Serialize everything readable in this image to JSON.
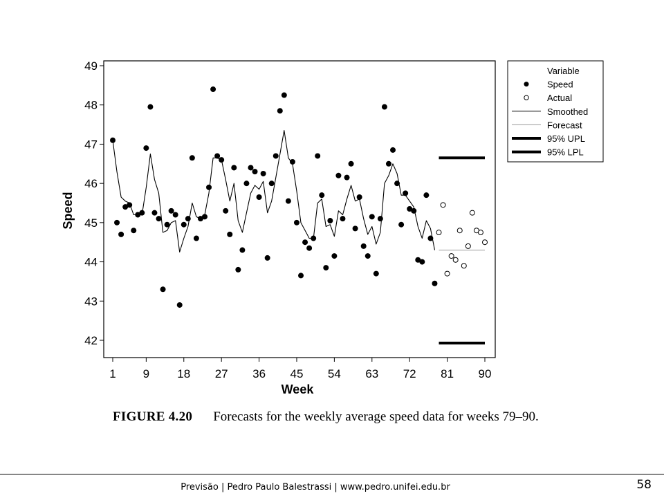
{
  "chart_data": {
    "type": "scatter",
    "xlabel": "Week",
    "ylabel": "Speed",
    "xlim": [
      0,
      91
    ],
    "ylim": [
      41.8,
      49.1
    ],
    "xticks": [
      1,
      9,
      18,
      27,
      36,
      45,
      54,
      63,
      72,
      81,
      90
    ],
    "yticks": [
      42,
      43,
      44,
      45,
      46,
      47,
      48,
      49
    ],
    "legend": {
      "position": "right",
      "title": "Variable",
      "entries": [
        {
          "label": "Speed",
          "style": "filled-circle"
        },
        {
          "label": "Actual",
          "style": "open-circle"
        },
        {
          "label": "Smoothed",
          "style": "thin-line"
        },
        {
          "label": "Forecast",
          "style": "gray-line"
        },
        {
          "label": "95% UPL",
          "style": "thick-line"
        },
        {
          "label": "95% LPL",
          "style": "thick-line"
        }
      ]
    },
    "series": [
      {
        "name": "Speed",
        "x": [
          1,
          2,
          3,
          4,
          5,
          6,
          7,
          8,
          9,
          10,
          11,
          12,
          13,
          14,
          15,
          16,
          17,
          18,
          19,
          20,
          21,
          22,
          23,
          24,
          25,
          26,
          27,
          28,
          29,
          30,
          31,
          32,
          33,
          34,
          35,
          36,
          37,
          38,
          39,
          40,
          41,
          42,
          43,
          44,
          45,
          46,
          47,
          48,
          49,
          50,
          51,
          52,
          53,
          54,
          55,
          56,
          57,
          58,
          59,
          60,
          61,
          62,
          63,
          64,
          65,
          66,
          67,
          68,
          69,
          70,
          71,
          72,
          73,
          74,
          75,
          76,
          77,
          78
        ],
        "y": [
          47.1,
          45.0,
          44.7,
          45.4,
          45.45,
          44.8,
          45.2,
          45.25,
          46.9,
          47.95,
          45.25,
          45.1,
          43.3,
          44.95,
          45.3,
          45.2,
          42.9,
          44.95,
          45.1,
          46.65,
          44.6,
          45.1,
          45.15,
          45.9,
          48.4,
          46.7,
          46.6,
          45.3,
          44.7,
          46.4,
          43.8,
          44.3,
          46.0,
          46.4,
          46.3,
          45.65,
          46.25,
          44.1,
          46.0,
          46.7,
          47.85,
          48.25,
          45.55,
          46.55,
          45.0,
          43.65,
          44.5,
          44.35,
          44.6,
          46.7,
          45.7,
          43.85,
          45.05,
          44.15,
          46.2,
          45.1,
          46.15,
          46.5,
          44.85,
          45.65,
          44.4,
          44.15,
          45.15,
          43.7,
          45.1,
          47.95,
          46.5,
          46.85,
          46.0,
          44.95,
          45.75,
          45.35,
          45.3,
          44.05,
          44.0,
          45.7,
          44.6,
          43.45
        ]
      },
      {
        "name": "Actual",
        "x": [
          79,
          80,
          81,
          82,
          83,
          84,
          85,
          86,
          87,
          88,
          89,
          90
        ],
        "y": [
          44.75,
          45.45,
          43.7,
          44.15,
          44.05,
          44.8,
          43.9,
          44.4,
          45.25,
          44.8,
          44.75,
          44.5
        ]
      },
      {
        "name": "Smoothed",
        "x": [
          1,
          2,
          3,
          4,
          5,
          6,
          7,
          8,
          9,
          10,
          11,
          12,
          13,
          14,
          15,
          16,
          17,
          18,
          19,
          20,
          21,
          22,
          23,
          24,
          25,
          26,
          27,
          28,
          29,
          30,
          31,
          32,
          33,
          34,
          35,
          36,
          37,
          38,
          39,
          40,
          41,
          42,
          43,
          44,
          45,
          46,
          47,
          48,
          49,
          50,
          51,
          52,
          53,
          54,
          55,
          56,
          57,
          58,
          59,
          60,
          61,
          62,
          63,
          64,
          65,
          66,
          67,
          68,
          69,
          70,
          71,
          72,
          73,
          74,
          75,
          76,
          77,
          78
        ],
        "y": [
          47.1,
          46.3,
          45.65,
          45.55,
          45.5,
          45.2,
          45.2,
          45.2,
          45.9,
          46.75,
          46.1,
          45.75,
          44.75,
          44.8,
          45.0,
          45.05,
          44.25,
          44.6,
          44.9,
          45.5,
          45.15,
          45.1,
          45.2,
          45.75,
          46.65,
          46.65,
          46.6,
          46.1,
          45.55,
          46.0,
          45.05,
          44.75,
          45.25,
          45.75,
          45.95,
          45.85,
          46.05,
          45.25,
          45.55,
          46.15,
          46.75,
          47.35,
          46.65,
          46.5,
          45.8,
          45.0,
          44.8,
          44.6,
          44.6,
          45.5,
          45.6,
          44.9,
          44.95,
          44.65,
          45.3,
          45.2,
          45.6,
          45.95,
          45.55,
          45.6,
          45.1,
          44.7,
          44.9,
          44.45,
          44.75,
          46.0,
          46.2,
          46.5,
          46.25,
          45.7,
          45.7,
          45.55,
          45.4,
          44.9,
          44.6,
          45.05,
          44.85,
          44.3
        ]
      },
      {
        "name": "Forecast",
        "x": [
          79,
          90
        ],
        "y": [
          44.3,
          44.3
        ]
      },
      {
        "name": "95% UPL",
        "x": [
          79,
          90
        ],
        "y": [
          46.65,
          46.65
        ]
      },
      {
        "name": "95% LPL",
        "x": [
          79,
          90
        ],
        "y": [
          41.93,
          41.93
        ]
      }
    ]
  },
  "caption": {
    "figure": "FIGURE 4.20",
    "text": "Forecasts for the weekly average speed data for weeks 79–90."
  },
  "footer": {
    "text": "Previsão | Pedro Paulo Balestrassi | www.pedro.unifei.edu.br",
    "page": "58"
  }
}
